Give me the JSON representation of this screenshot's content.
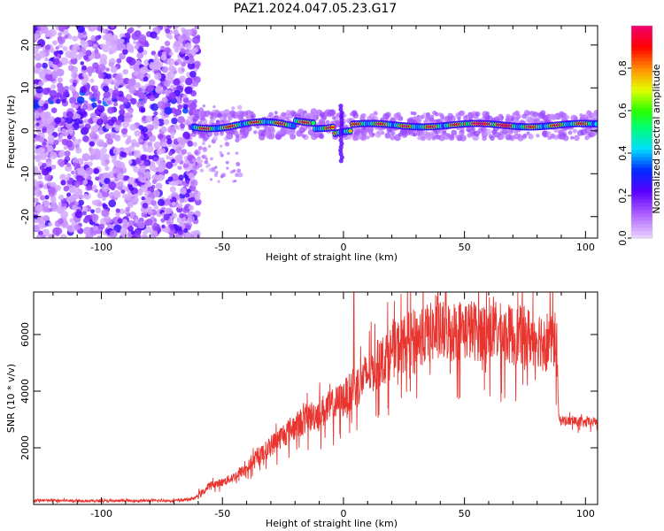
{
  "title": "PAZ1.2024.047.05.23.G17",
  "chart_data": [
    {
      "type": "heatmap",
      "xlabel": "Height of straight line (km)",
      "ylabel": "Frequency (Hz)",
      "xlim": [
        -128,
        105
      ],
      "ylim": [
        -25,
        24.5
      ],
      "xticks": [
        -100,
        -50,
        0,
        50,
        100
      ],
      "yticks": [
        -20,
        -10,
        0,
        10,
        20
      ],
      "colorbar": {
        "label": "Normalized spectral amplitude",
        "range": [
          0,
          1
        ],
        "ticks": [
          0.0,
          0.2,
          0.4,
          0.6,
          0.8
        ],
        "tick_labels": [
          "0.0",
          "0.2",
          "0.4",
          "0.6",
          "0.8"
        ]
      },
      "features": [
        {
          "x_range": [
            -128,
            -62
          ],
          "description_values": {
            "frequency_spread_hz": [
              -25,
              24
            ],
            "peak_band_hz": [
              5,
              10
            ],
            "amplitude": 0.25
          }
        },
        {
          "x_range": [
            -62,
            105
          ],
          "description_values": {
            "center_frequency_hz": [
              2,
              0
            ],
            "amplitude": 0.9
          }
        }
      ]
    },
    {
      "type": "line",
      "xlabel": "Height of straight line (km)",
      "ylabel": "SNR (10 * v/v)",
      "xlim": [
        -128,
        105
      ],
      "ylim": [
        0,
        7500
      ],
      "xticks": [
        -100,
        -50,
        0,
        50,
        100
      ],
      "yticks": [
        2000,
        4000,
        6000
      ],
      "series": [
        {
          "color": "#e8352f",
          "x": [
            -128,
            -100,
            -70,
            -62,
            -58,
            -55,
            -50,
            -45,
            -40,
            -35,
            -30,
            -25,
            -20,
            -15,
            -10,
            -5,
            0,
            5,
            10,
            15,
            20,
            25,
            30,
            35,
            40,
            45,
            50,
            55,
            60,
            65,
            70,
            75,
            80,
            85,
            88,
            89,
            95,
            100,
            105
          ],
          "y": [
            150,
            130,
            140,
            200,
            450,
            700,
            800,
            1000,
            1300,
            1700,
            2100,
            2500,
            2800,
            3100,
            3300,
            3500,
            3800,
            4200,
            4700,
            5100,
            5500,
            5800,
            6000,
            6150,
            6200,
            6250,
            6300,
            6250,
            6200,
            6150,
            6100,
            6050,
            6000,
            5950,
            5900,
            3000,
            2950,
            2900,
            2950
          ]
        }
      ]
    }
  ]
}
